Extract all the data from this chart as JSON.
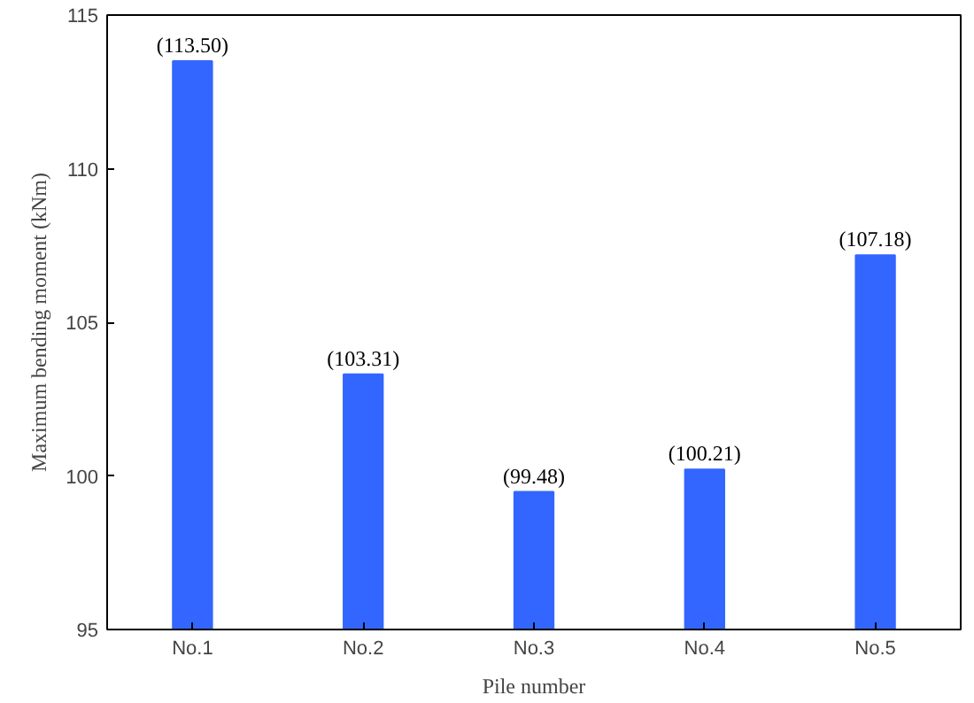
{
  "chart_data": {
    "type": "bar",
    "xlabel": "Pile number",
    "ylabel": "Maximum bending moment (kNm)",
    "categories": [
      "No.1",
      "No.2",
      "No.3",
      "No.4",
      "No.5"
    ],
    "values": [
      113.5,
      103.31,
      99.48,
      100.21,
      107.18
    ],
    "value_labels": [
      "(113.50)",
      "(103.31)",
      "(99.48)",
      "(100.21)",
      "(107.18)"
    ],
    "color": "#3366ff",
    "ylim": [
      95,
      115
    ],
    "yticks": [
      95,
      100,
      105,
      110,
      115
    ],
    "grid": false
  }
}
